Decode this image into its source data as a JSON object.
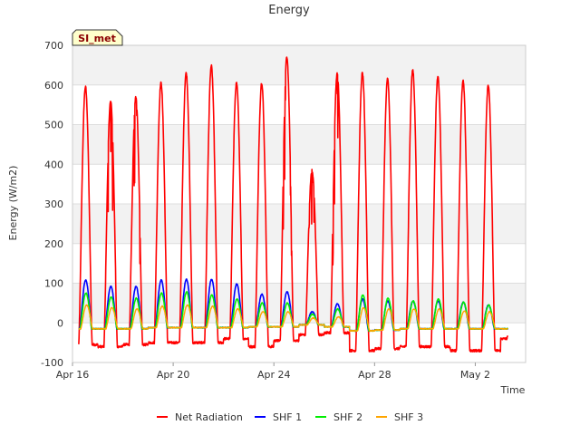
{
  "chart_data": {
    "type": "line",
    "title": "Energy",
    "xlabel": "Time",
    "ylabel": "Energy (W/m2)",
    "badge": "SI_met",
    "ylim": [
      -100,
      700
    ],
    "yticks": [
      -100,
      0,
      100,
      200,
      300,
      400,
      500,
      600,
      700
    ],
    "xlim_days": [
      0,
      18
    ],
    "xticks": [
      {
        "day": 0,
        "label": "Apr 16"
      },
      {
        "day": 4,
        "label": "Apr 20"
      },
      {
        "day": 8,
        "label": "Apr 24"
      },
      {
        "day": 12,
        "label": "Apr 28"
      },
      {
        "day": 16,
        "label": "May 2"
      }
    ],
    "data_start_day": 0.25,
    "data_end_day": 17.3,
    "daily_peaks": {
      "dates": [
        "Apr 16",
        "Apr 17",
        "Apr 18",
        "Apr 19",
        "Apr 20",
        "Apr 21",
        "Apr 22",
        "Apr 23",
        "Apr 24",
        "Apr 25",
        "Apr 26",
        "Apr 27",
        "Apr 28",
        "Apr 29",
        "Apr 30",
        "May 1",
        "May 2",
        "May 3"
      ],
      "net_radiation_max": [
        595,
        560,
        570,
        605,
        630,
        648,
        605,
        605,
        670,
        385,
        630,
        630,
        615,
        638,
        620,
        610,
        600,
        0
      ],
      "net_radiation_night": [
        -55,
        -60,
        -55,
        -50,
        -50,
        -50,
        -40,
        -60,
        -45,
        -30,
        -25,
        -70,
        -65,
        -60,
        -60,
        -70,
        -70,
        -40
      ],
      "shf1_max": [
        108,
        92,
        92,
        108,
        110,
        110,
        98,
        72,
        78,
        28,
        48,
        60,
        55,
        55,
        55,
        52,
        45,
        0
      ],
      "shf2_max": [
        75,
        65,
        62,
        75,
        78,
        70,
        60,
        50,
        50,
        22,
        35,
        70,
        62,
        55,
        60,
        52,
        45,
        0
      ],
      "shf3_max": [
        45,
        38,
        35,
        42,
        45,
        42,
        35,
        28,
        28,
        12,
        15,
        38,
        35,
        35,
        35,
        30,
        28,
        0
      ],
      "shf_night": [
        -15,
        -15,
        -15,
        -12,
        -12,
        -12,
        -12,
        -10,
        -10,
        -5,
        -10,
        -20,
        -18,
        -15,
        -15,
        -15,
        -15,
        -15
      ]
    },
    "series": [
      {
        "name": "Net Radiation",
        "color": "#ff0000"
      },
      {
        "name": "SHF 1",
        "color": "#0000ff"
      },
      {
        "name": "SHF 2",
        "color": "#00ee00"
      },
      {
        "name": "SHF 3",
        "color": "#ffa500"
      }
    ]
  }
}
